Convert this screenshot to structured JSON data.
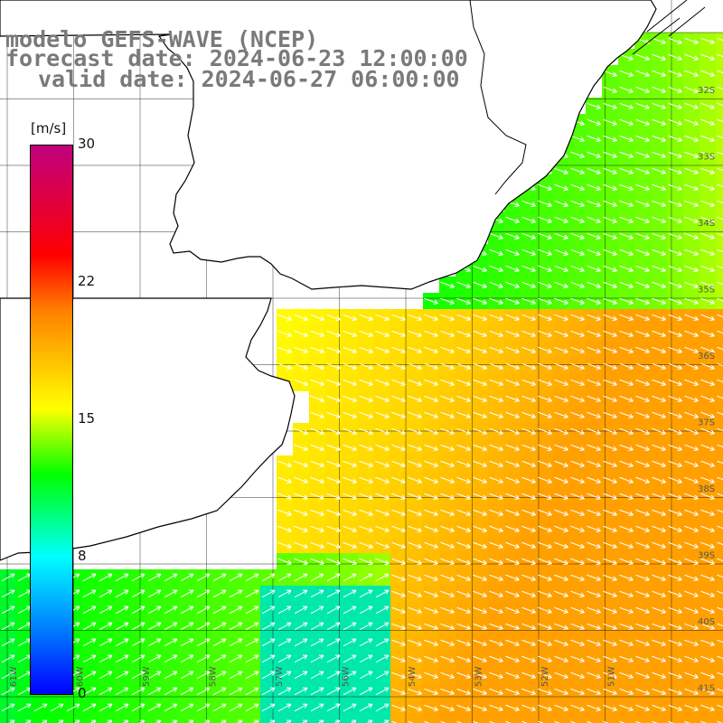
{
  "title": {
    "line1": "modelo GEFS-WAVE (NCEP)",
    "line2": "forecast date: 2024-06-23 12:00:00",
    "line3": "valid date: 2024-06-27 06:00:00"
  },
  "colorbar": {
    "unit": "[m/s]",
    "ticks": [
      "30",
      "22",
      "15",
      "8",
      "0"
    ],
    "range": [
      0,
      30
    ],
    "colors": [
      "#c0007f",
      "#ff0000",
      "#ff7f00",
      "#ffff00",
      "#00ff00",
      "#00ffff",
      "#007fff",
      "#0000ff"
    ]
  },
  "map": {
    "variable": "wind speed",
    "arrow_color": "#ffffff",
    "grid_color": "#000000",
    "land_color": "#ffffff",
    "lat_labels": [
      "32S",
      "33S",
      "34S",
      "35S",
      "36S",
      "37S",
      "38S",
      "39S",
      "40S",
      "41S"
    ],
    "lon_labels": [
      "61W",
      "60W",
      "59W",
      "58W",
      "57W",
      "56W",
      "54W",
      "53W",
      "52W",
      "51W"
    ]
  }
}
